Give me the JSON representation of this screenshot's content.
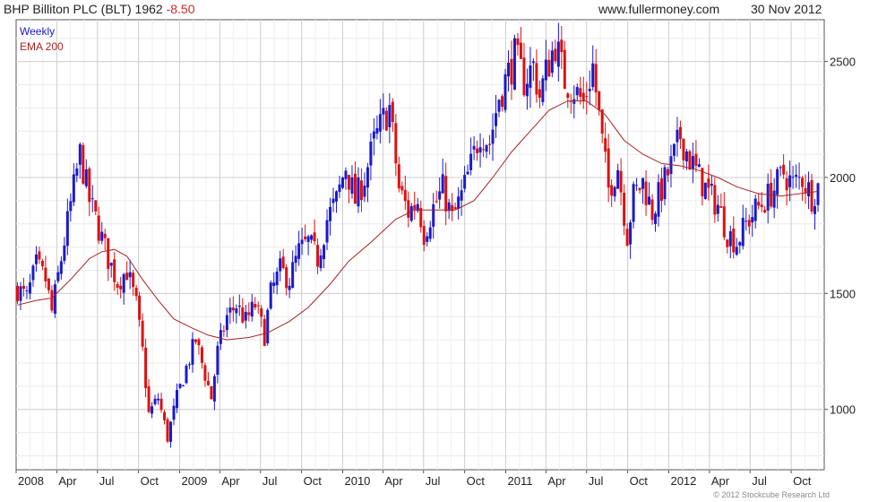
{
  "header": {
    "title": "BHP Billiton PLC (BLT) 1962",
    "change": "-8.50",
    "website": "www.fullermoney.com",
    "date": "30 Nov 2012"
  },
  "copyright": "© 2012 Stockcube Research Ltd",
  "colors": {
    "up": "#1a1acc",
    "down": "#dd1111",
    "ema": "#aa2222",
    "grid": "#cfcfcf",
    "frame": "#555555"
  },
  "chart_data": {
    "type": "candlestick",
    "legend": [
      {
        "name": "Weekly",
        "color": "#1a1acc"
      },
      {
        "name": "EMA 200",
        "color": "#aa2222"
      }
    ],
    "legend_position": "top-left",
    "grid": true,
    "ylim": [
      740,
      2680
    ],
    "y_ticks": [
      1000,
      1500,
      2000,
      2500
    ],
    "x_range": [
      "2008-01-01",
      "2012-12-14"
    ],
    "x_ticks": [
      {
        "label": "2008",
        "date": "2008-01-01"
      },
      {
        "label": "Apr",
        "date": "2008-04-01"
      },
      {
        "label": "Jul",
        "date": "2008-07-01"
      },
      {
        "label": "Oct",
        "date": "2008-10-01"
      },
      {
        "label": "2009",
        "date": "2009-01-01"
      },
      {
        "label": "Apr",
        "date": "2009-04-01"
      },
      {
        "label": "Jul",
        "date": "2009-07-01"
      },
      {
        "label": "Oct",
        "date": "2009-10-01"
      },
      {
        "label": "2010",
        "date": "2010-01-01"
      },
      {
        "label": "Apr",
        "date": "2010-04-01"
      },
      {
        "label": "Jul",
        "date": "2010-07-01"
      },
      {
        "label": "Oct",
        "date": "2010-10-01"
      },
      {
        "label": "2011",
        "date": "2011-01-01"
      },
      {
        "label": "Apr",
        "date": "2011-04-01"
      },
      {
        "label": "Jul",
        "date": "2011-07-01"
      },
      {
        "label": "Oct",
        "date": "2011-10-01"
      },
      {
        "label": "2012",
        "date": "2012-01-01"
      },
      {
        "label": "Apr",
        "date": "2012-04-01"
      },
      {
        "label": "Jul",
        "date": "2012-07-01"
      },
      {
        "label": "Oct",
        "date": "2012-10-01"
      }
    ],
    "price_path": [
      [
        "2008-01-04",
        1520
      ],
      [
        "2008-01-25",
        1480
      ],
      [
        "2008-02-15",
        1620
      ],
      [
        "2008-03-07",
        1560
      ],
      [
        "2008-03-21",
        1420
      ],
      [
        "2008-04-11",
        1650
      ],
      [
        "2008-05-02",
        1880
      ],
      [
        "2008-05-23",
        2100
      ],
      [
        "2008-06-13",
        1900
      ],
      [
        "2008-07-04",
        1780
      ],
      [
        "2008-07-25",
        1650
      ],
      [
        "2008-08-15",
        1550
      ],
      [
        "2008-09-05",
        1600
      ],
      [
        "2008-09-26",
        1450
      ],
      [
        "2008-10-10",
        1250
      ],
      [
        "2008-10-24",
        980
      ],
      [
        "2008-11-14",
        1050
      ],
      [
        "2008-12-05",
        880
      ],
      [
        "2008-12-26",
        1050
      ],
      [
        "2009-01-16",
        1180
      ],
      [
        "2009-02-06",
        1300
      ],
      [
        "2009-02-27",
        1150
      ],
      [
        "2009-03-13",
        1050
      ],
      [
        "2009-03-27",
        1250
      ],
      [
        "2009-04-17",
        1400
      ],
      [
        "2009-05-08",
        1450
      ],
      [
        "2009-05-29",
        1380
      ],
      [
        "2009-06-19",
        1450
      ],
      [
        "2009-07-10",
        1320
      ],
      [
        "2009-07-24",
        1500
      ],
      [
        "2009-08-14",
        1600
      ],
      [
        "2009-09-04",
        1560
      ],
      [
        "2009-09-25",
        1680
      ],
      [
        "2009-10-16",
        1720
      ],
      [
        "2009-11-06",
        1650
      ],
      [
        "2009-11-27",
        1820
      ],
      [
        "2009-12-18",
        1900
      ],
      [
        "2010-01-08",
        2050
      ],
      [
        "2010-01-29",
        1900
      ],
      [
        "2010-02-19",
        2000
      ],
      [
        "2010-03-12",
        2150
      ],
      [
        "2010-04-02",
        2250
      ],
      [
        "2010-04-16",
        2300
      ],
      [
        "2010-05-07",
        1950
      ],
      [
        "2010-05-28",
        1850
      ],
      [
        "2010-06-18",
        1900
      ],
      [
        "2010-07-02",
        1760
      ],
      [
        "2010-07-23",
        1870
      ],
      [
        "2010-08-13",
        1950
      ],
      [
        "2010-09-03",
        1820
      ],
      [
        "2010-09-24",
        1920
      ],
      [
        "2010-10-15",
        2050
      ],
      [
        "2010-11-05",
        2200
      ],
      [
        "2010-11-26",
        2150
      ],
      [
        "2010-12-17",
        2350
      ],
      [
        "2011-01-07",
        2450
      ],
      [
        "2011-01-21",
        2520
      ],
      [
        "2011-02-11",
        2420
      ],
      [
        "2011-03-04",
        2480
      ],
      [
        "2011-03-18",
        2350
      ],
      [
        "2011-04-08",
        2500
      ],
      [
        "2011-04-22",
        2580
      ],
      [
        "2011-05-13",
        2420
      ],
      [
        "2011-06-03",
        2380
      ],
      [
        "2011-06-24",
        2320
      ],
      [
        "2011-07-15",
        2480
      ],
      [
        "2011-08-05",
        2150
      ],
      [
        "2011-08-19",
        1950
      ],
      [
        "2011-09-09",
        2050
      ],
      [
        "2011-09-30",
        1750
      ],
      [
        "2011-10-14",
        1920
      ],
      [
        "2011-11-04",
        1980
      ],
      [
        "2011-11-25",
        1850
      ],
      [
        "2011-12-16",
        1950
      ],
      [
        "2012-01-06",
        2050
      ],
      [
        "2012-01-27",
        2180
      ],
      [
        "2012-02-17",
        2080
      ],
      [
        "2012-03-09",
        2000
      ],
      [
        "2012-03-30",
        1930
      ],
      [
        "2012-04-20",
        1880
      ],
      [
        "2012-05-11",
        1760
      ],
      [
        "2012-06-01",
        1720
      ],
      [
        "2012-06-22",
        1800
      ],
      [
        "2012-07-13",
        1860
      ],
      [
        "2012-08-03",
        1900
      ],
      [
        "2012-08-24",
        1950
      ],
      [
        "2012-09-14",
        2020
      ],
      [
        "2012-10-05",
        1970
      ],
      [
        "2012-10-26",
        2000
      ],
      [
        "2012-11-16",
        1920
      ],
      [
        "2012-11-30",
        1962
      ]
    ],
    "ema_200": [
      [
        "2008-01-04",
        1450
      ],
      [
        "2008-02-15",
        1470
      ],
      [
        "2008-03-21",
        1480
      ],
      [
        "2008-05-02",
        1560
      ],
      [
        "2008-06-13",
        1650
      ],
      [
        "2008-07-11",
        1680
      ],
      [
        "2008-08-08",
        1690
      ],
      [
        "2008-09-05",
        1660
      ],
      [
        "2008-10-10",
        1560
      ],
      [
        "2008-11-14",
        1470
      ],
      [
        "2008-12-19",
        1390
      ],
      [
        "2009-01-30",
        1350
      ],
      [
        "2009-03-06",
        1320
      ],
      [
        "2009-04-17",
        1300
      ],
      [
        "2009-06-05",
        1310
      ],
      [
        "2009-07-17",
        1330
      ],
      [
        "2009-09-04",
        1380
      ],
      [
        "2009-10-16",
        1440
      ],
      [
        "2009-12-04",
        1540
      ],
      [
        "2010-01-15",
        1640
      ],
      [
        "2010-03-05",
        1720
      ],
      [
        "2010-04-30",
        1820
      ],
      [
        "2010-06-11",
        1860
      ],
      [
        "2010-07-23",
        1860
      ],
      [
        "2010-09-10",
        1860
      ],
      [
        "2010-10-22",
        1900
      ],
      [
        "2010-12-03",
        2000
      ],
      [
        "2011-01-14",
        2110
      ],
      [
        "2011-02-25",
        2200
      ],
      [
        "2011-04-08",
        2290
      ],
      [
        "2011-05-20",
        2330
      ],
      [
        "2011-07-01",
        2330
      ],
      [
        "2011-08-12",
        2270
      ],
      [
        "2011-09-23",
        2160
      ],
      [
        "2011-11-04",
        2100
      ],
      [
        "2011-12-16",
        2060
      ],
      [
        "2012-01-27",
        2050
      ],
      [
        "2012-03-09",
        2030
      ],
      [
        "2012-04-20",
        2000
      ],
      [
        "2012-06-01",
        1960
      ],
      [
        "2012-07-20",
        1930
      ],
      [
        "2012-09-07",
        1920
      ],
      [
        "2012-10-19",
        1930
      ],
      [
        "2012-11-30",
        1940
      ]
    ]
  }
}
